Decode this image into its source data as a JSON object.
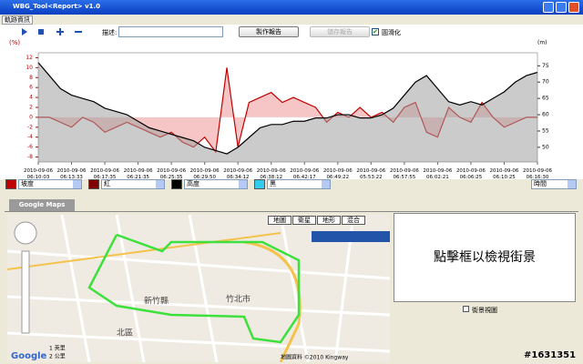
{
  "window": {
    "title": "WBG_Tool<Report> v1.0",
    "menu": "軌跡資訊"
  },
  "toolbar": {
    "desc_label": "描述:",
    "make_report": "製作報告",
    "save_report": "儲存報告",
    "smooth": "圓滑化"
  },
  "chart_data": {
    "type": "line",
    "categories": [
      "2010-09-06 06:10:03",
      null,
      null,
      "2010-09-06 06:13:33",
      null,
      null,
      "2010-09-06 06:17:35",
      null,
      null,
      "2010-09-06 06:21:35",
      null,
      null,
      "2010-09-06 06:25:35",
      null,
      null,
      "2010-09-06 06:29:50",
      null,
      null,
      "2010-09-06 06:34:12",
      null,
      null,
      "2010-09-06 06:38:12",
      null,
      null,
      "2010-09-06 06:42:17",
      null,
      null,
      "2010-09-06 06:49:22",
      null,
      null,
      "2010-09-06 05:53:22",
      null,
      null,
      "2010-09-06 06:57:55",
      null,
      null,
      "2010-09-06 06:02:21",
      null,
      null,
      "2010-09-06 06:06:25",
      null,
      null,
      "2010-09-06 06:10:25",
      null,
      null,
      "2010-09-06 06:16:30"
    ],
    "series": [
      {
        "name": "坡度",
        "color": "#c00000",
        "fill": "#f4b8b8",
        "axis": "y",
        "values": [
          0,
          0,
          -1,
          -2,
          0,
          -1,
          -3,
          -2,
          -1,
          -2,
          -3,
          -4,
          -3,
          -5,
          -6,
          -4,
          -7,
          10,
          -6,
          3,
          4,
          5,
          3,
          4,
          3,
          2,
          -1,
          1,
          0,
          2,
          0,
          1,
          -1,
          2,
          3,
          -3,
          -4,
          2,
          0,
          -1,
          3,
          0,
          -2,
          -1,
          0,
          0
        ]
      },
      {
        "name": "高度",
        "color": "#000000",
        "fill": "#a0a0a0",
        "axis": "y2",
        "values": [
          76,
          72,
          68,
          66,
          65,
          64,
          62,
          61,
          60,
          58,
          56,
          55,
          54,
          53,
          52,
          50,
          49,
          48,
          50,
          53,
          56,
          57,
          57,
          58,
          58,
          59,
          59,
          60,
          60,
          59,
          59,
          60,
          62,
          66,
          70,
          72,
          68,
          64,
          63,
          64,
          63,
          65,
          67,
          70,
          72,
          73
        ]
      }
    ],
    "ylabel": "(%)",
    "y2label": "(m)",
    "ylim": [
      -9,
      13
    ],
    "yticks": [
      12,
      10,
      8,
      6,
      4,
      2,
      0,
      -2,
      -4,
      -6,
      -8
    ],
    "y2lim": [
      45.5,
      79
    ],
    "y2ticks": [
      75,
      70,
      65,
      60,
      55,
      50
    ]
  },
  "legend": [
    {
      "label": "坡度",
      "color": "#c00000"
    },
    {
      "label": "紅",
      "color": "#800000"
    },
    {
      "label": "高度",
      "color": "#000000"
    },
    {
      "label": "黑",
      "color": "#33ccee"
    }
  ],
  "xaxis_select": "時間",
  "map": {
    "tab": "Google Maps",
    "buttons": [
      "地圖",
      "衛星",
      "地形",
      "混合"
    ],
    "labels": [
      "竹北市",
      "新竹縣",
      "北區"
    ],
    "copyright": "地圖資料 ©2010 Kingway",
    "scale": [
      "1 英里",
      "2 公里"
    ],
    "logo": "Google"
  },
  "streetview": {
    "hint": "點擊框以檢視街景",
    "checkbox": "街景視圖"
  },
  "watermark": "#1631351"
}
